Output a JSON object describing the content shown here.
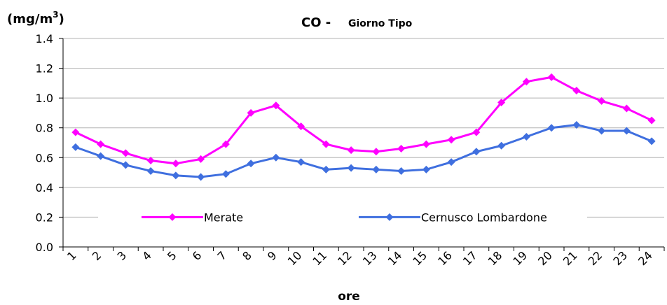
{
  "chart_data": {
    "type": "line",
    "title": "CO -",
    "subtitle": "Giorno Tipo",
    "unit_label_prefix": "(mg/m",
    "unit_label_exp": "3",
    "unit_label_suffix": ")",
    "xlabel": "ore",
    "ylabel": "",
    "ylim": [
      0,
      1.4
    ],
    "yticks": [
      "0.0",
      "0.2",
      "0.4",
      "0.6",
      "0.8",
      "1.0",
      "1.2",
      "1.4"
    ],
    "categories": [
      "1",
      "2",
      "3",
      "4",
      "5",
      "6",
      "7",
      "8",
      "9",
      "10",
      "11",
      "12",
      "13",
      "14",
      "15",
      "16",
      "17",
      "18",
      "19",
      "20",
      "21",
      "22",
      "23",
      "24"
    ],
    "grid": true,
    "legend_position": "bottom-inside",
    "series": [
      {
        "name": "Merate",
        "color": "#ff00ff",
        "marker": "diamond",
        "values": [
          0.77,
          0.69,
          0.63,
          0.58,
          0.56,
          0.59,
          0.69,
          0.9,
          0.95,
          0.81,
          0.69,
          0.65,
          0.64,
          0.66,
          0.69,
          0.72,
          0.77,
          0.97,
          1.11,
          1.14,
          1.05,
          0.98,
          0.93,
          0.85
        ]
      },
      {
        "name": "Cernusco Lombardone",
        "color": "#3f6fdf",
        "marker": "diamond",
        "values": [
          0.67,
          0.61,
          0.55,
          0.51,
          0.48,
          0.47,
          0.49,
          0.56,
          0.6,
          0.57,
          0.52,
          0.53,
          0.52,
          0.51,
          0.52,
          0.57,
          0.64,
          0.68,
          0.74,
          0.8,
          0.82,
          0.78,
          0.78,
          0.71
        ]
      }
    ]
  }
}
